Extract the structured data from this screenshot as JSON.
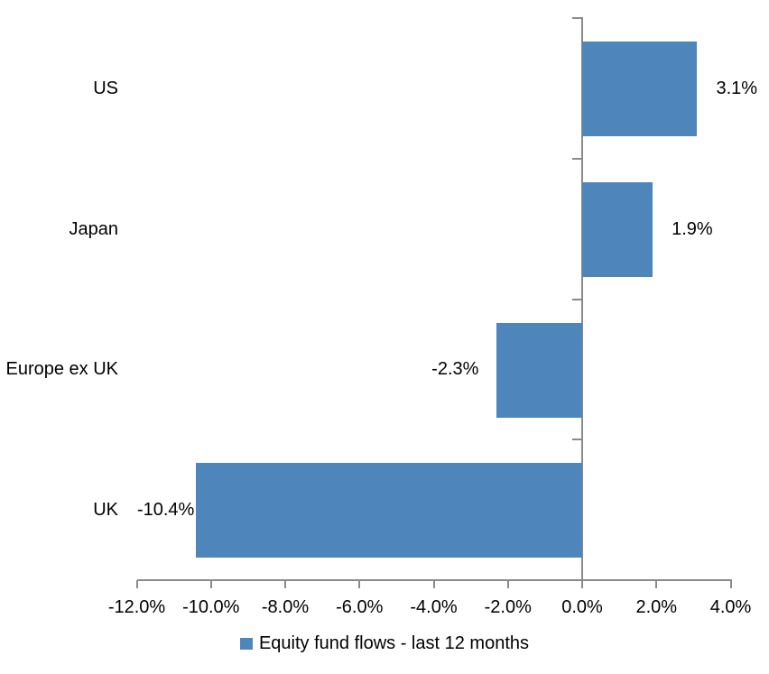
{
  "chart_data": {
    "type": "bar",
    "orientation": "horizontal",
    "title": "",
    "categories": [
      "US",
      "Japan",
      "Europe ex UK",
      "UK"
    ],
    "values": [
      3.1,
      1.9,
      -2.3,
      -10.4
    ],
    "value_labels": [
      "3.1%",
      "1.9%",
      "-2.3%",
      "-10.4%"
    ],
    "x_ticks": [
      -12,
      -10,
      -8,
      -6,
      -4,
      -2,
      0,
      2,
      4
    ],
    "x_tick_labels": [
      "-12.0%",
      "-10.0%",
      "-8.0%",
      "-6.0%",
      "-4.0%",
      "-2.0%",
      "0.0%",
      "2.0%",
      "4.0%"
    ],
    "xlim": [
      -12,
      4
    ],
    "grid": false,
    "legend_label": "Equity fund flows - last 12 months",
    "legend_position": "bottom-center",
    "bar_color": "#4E86BC",
    "axis_color": "#8A8A8A",
    "text_color": "#000000"
  }
}
